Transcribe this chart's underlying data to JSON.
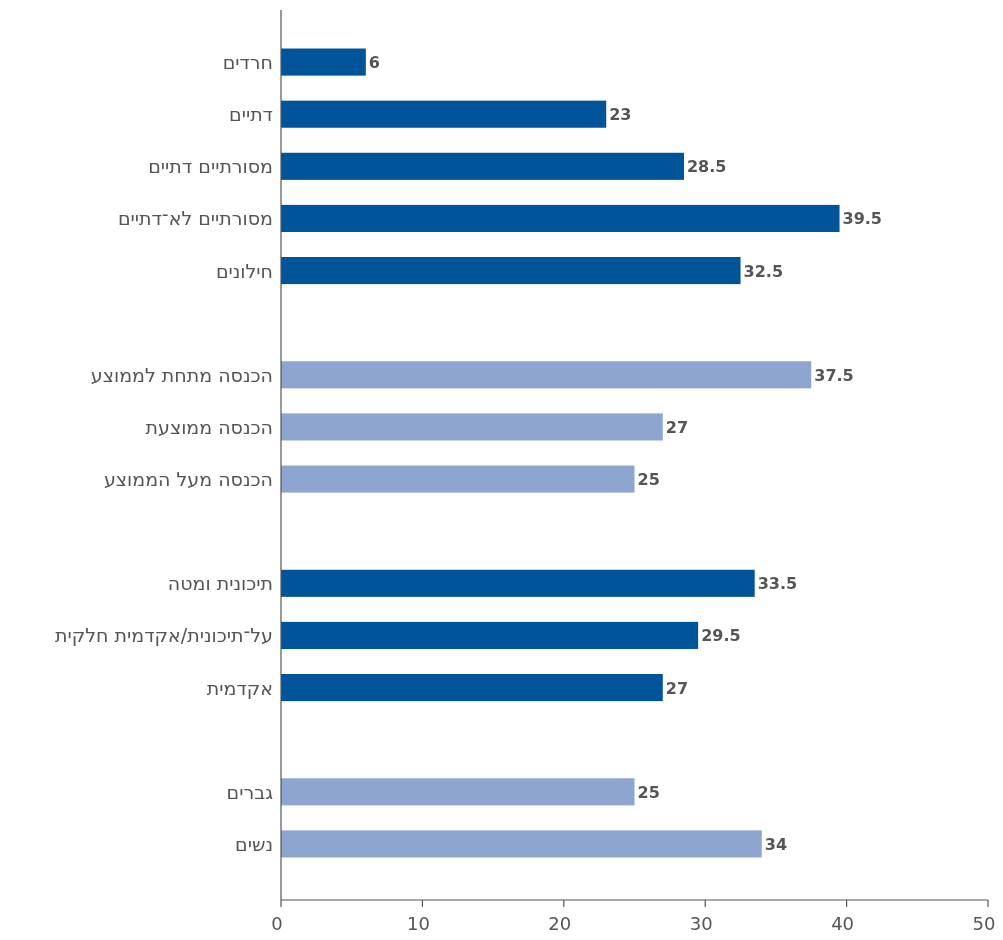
{
  "chart_data": {
    "type": "bar",
    "orientation": "horizontal",
    "categories": [
      "חרדים",
      "דתיים",
      "מסורתיים דתיים",
      "מסורתיים לא־דתיים",
      "חילונים",
      null,
      "הכנסה מתחת לממוצע",
      "הכנסה ממוצעת",
      "הכנסה מעל הממוצע",
      null,
      "תיכונית ומטה",
      "על־תיכונית/אקדמית חלקית",
      "אקדמית",
      null,
      "גברים",
      "נשים"
    ],
    "values": [
      6,
      23,
      28.5,
      39.5,
      32.5,
      null,
      37.5,
      27,
      25,
      null,
      33.5,
      29.5,
      27,
      null,
      25,
      34
    ],
    "colors": [
      "#00549a",
      "#00549a",
      "#00549a",
      "#00549a",
      "#00549a",
      null,
      "#8ea6cf",
      "#8ea6cf",
      "#8ea6cf",
      null,
      "#00549a",
      "#00549a",
      "#00549a",
      null,
      "#8ea6cf",
      "#8ea6cf"
    ],
    "xlim": [
      0,
      50
    ],
    "xticks": [
      0,
      10,
      20,
      30,
      40,
      50
    ],
    "data_labels": true,
    "grid": false
  }
}
